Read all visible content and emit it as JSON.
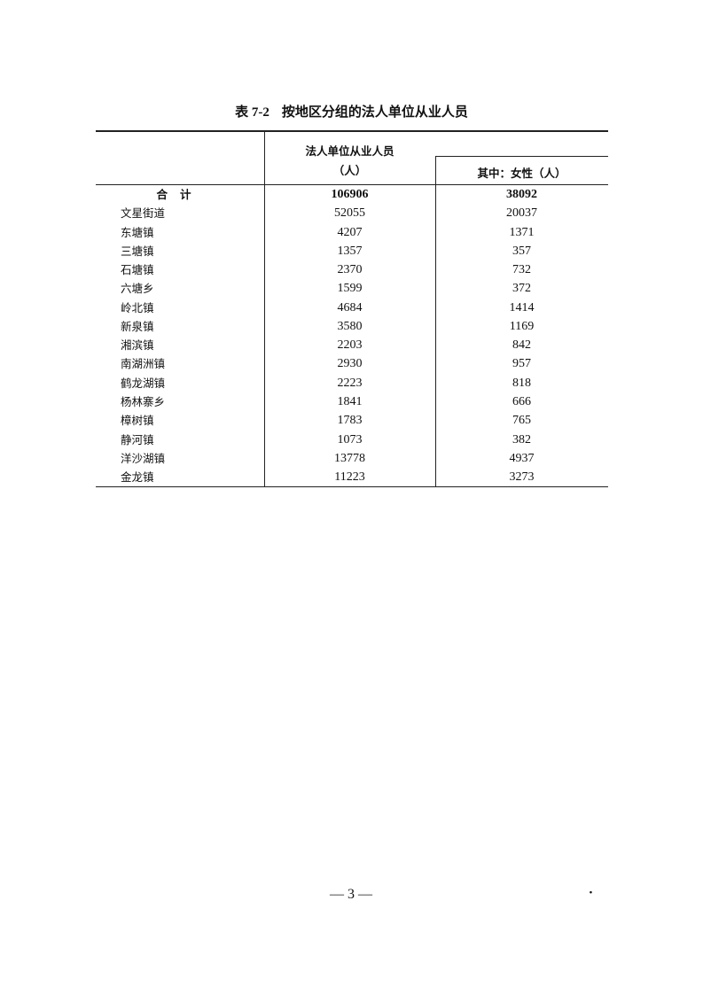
{
  "title": {
    "number": "表 7-2",
    "text": "按地区分组的法人单位从业人员"
  },
  "table": {
    "headers": {
      "col1_line1": "法人单位从业人员",
      "col1_line2": "（人）",
      "col2": "其中：女性（人）"
    },
    "total": {
      "name": "合计",
      "employees": "106906",
      "female": "38092"
    },
    "rows": [
      {
        "name": "文星街道",
        "employees": "52055",
        "female": "20037"
      },
      {
        "name": "东塘镇",
        "employees": "4207",
        "female": "1371"
      },
      {
        "name": "三塘镇",
        "employees": "1357",
        "female": "357"
      },
      {
        "name": "石塘镇",
        "employees": "2370",
        "female": "732"
      },
      {
        "name": "六塘乡",
        "employees": "1599",
        "female": "372"
      },
      {
        "name": "岭北镇",
        "employees": "4684",
        "female": "1414"
      },
      {
        "name": "新泉镇",
        "employees": "3580",
        "female": "1169"
      },
      {
        "name": "湘滨镇",
        "employees": "2203",
        "female": "842"
      },
      {
        "name": "南湖洲镇",
        "employees": "2930",
        "female": "957"
      },
      {
        "name": "鹤龙湖镇",
        "employees": "2223",
        "female": "818"
      },
      {
        "name": "杨林寨乡",
        "employees": "1841",
        "female": "666"
      },
      {
        "name": "樟树镇",
        "employees": "1783",
        "female": "765"
      },
      {
        "name": "静河镇",
        "employees": "1073",
        "female": "382"
      },
      {
        "name": "洋沙湖镇",
        "employees": "13778",
        "female": "4937"
      },
      {
        "name": "金龙镇",
        "employees": "11223",
        "female": "3273"
      }
    ]
  },
  "footer": {
    "page_number": "— 3 —",
    "mark": "·"
  }
}
